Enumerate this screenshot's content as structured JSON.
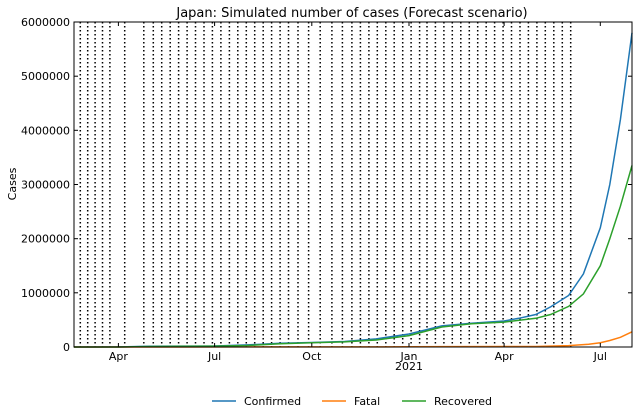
{
  "chart_data": {
    "type": "line",
    "title": "Japan: Simulated number of cases (Forecast scenario)",
    "ylabel": "Cases",
    "xlabel": "",
    "x_range": [
      "2020-02-19",
      "2021-07-31"
    ],
    "ylim": [
      0,
      6000000
    ],
    "yticks": [
      0,
      1000000,
      2000000,
      3000000,
      4000000,
      5000000,
      6000000
    ],
    "ytick_labels": [
      "0",
      "1000000",
      "2000000",
      "3000000",
      "4000000",
      "5000000",
      "6000000"
    ],
    "xticks": [
      {
        "date": "2020-04-01",
        "label": "Apr"
      },
      {
        "date": "2020-07-01",
        "label": "Jul"
      },
      {
        "date": "2020-10-01",
        "label": "Oct"
      },
      {
        "date": "2021-01-01",
        "label": "Jan"
      },
      {
        "date": "2021-04-01",
        "label": "Apr"
      },
      {
        "date": "2021-07-01",
        "label": "Jul"
      }
    ],
    "year_label": {
      "date": "2021-01-01",
      "label": "2021"
    },
    "legend_position": "bottom-center",
    "change_dates": [
      "2020-02-25",
      "2020-03-03",
      "2020-03-10",
      "2020-03-17",
      "2020-03-24",
      "2020-04-07",
      "2020-04-25",
      "2020-05-04",
      "2020-05-12",
      "2020-05-20",
      "2020-05-28",
      "2020-06-05",
      "2020-06-13",
      "2020-06-21",
      "2020-06-29",
      "2020-07-07",
      "2020-07-15",
      "2020-07-23",
      "2020-07-31",
      "2020-08-08",
      "2020-08-16",
      "2020-08-24",
      "2020-09-01",
      "2020-09-09",
      "2020-09-18",
      "2020-09-28",
      "2020-10-09",
      "2020-10-20",
      "2020-10-30",
      "2020-11-08",
      "2020-11-16",
      "2020-11-24",
      "2020-12-02",
      "2020-12-10",
      "2020-12-18",
      "2020-12-26",
      "2021-01-03",
      "2021-01-11",
      "2021-01-18",
      "2021-01-26",
      "2021-02-03",
      "2021-02-11",
      "2021-02-19",
      "2021-02-27",
      "2021-03-07",
      "2021-03-15",
      "2021-03-23",
      "2021-03-31",
      "2021-04-08",
      "2021-04-16",
      "2021-04-24",
      "2021-05-02",
      "2021-05-10",
      "2021-05-18",
      "2021-05-26",
      "2021-06-03"
    ],
    "series": [
      {
        "name": "Confirmed",
        "color": "#1f77b4",
        "points": [
          [
            "2020-02-19",
            100
          ],
          [
            "2020-04-01",
            2000
          ],
          [
            "2020-05-01",
            14000
          ],
          [
            "2020-06-01",
            17000
          ],
          [
            "2020-07-01",
            19000
          ],
          [
            "2020-08-01",
            38000
          ],
          [
            "2020-09-01",
            69000
          ],
          [
            "2020-10-01",
            83000
          ],
          [
            "2020-11-01",
            102000
          ],
          [
            "2020-12-01",
            150000
          ],
          [
            "2021-01-01",
            240000
          ],
          [
            "2021-02-01",
            390000
          ],
          [
            "2021-03-01",
            440000
          ],
          [
            "2021-04-01",
            480000
          ],
          [
            "2021-04-15",
            530000
          ],
          [
            "2021-05-01",
            600000
          ],
          [
            "2021-05-15",
            740000
          ],
          [
            "2021-06-01",
            950000
          ],
          [
            "2021-06-15",
            1350000
          ],
          [
            "2021-07-01",
            2200000
          ],
          [
            "2021-07-10",
            3000000
          ],
          [
            "2021-07-20",
            4200000
          ],
          [
            "2021-07-31",
            5800000
          ]
        ]
      },
      {
        "name": "Fatal",
        "color": "#ff7f0e",
        "points": [
          [
            "2020-02-19",
            0
          ],
          [
            "2020-06-01",
            900
          ],
          [
            "2020-09-01",
            1300
          ],
          [
            "2020-12-01",
            2500
          ],
          [
            "2021-02-01",
            6500
          ],
          [
            "2021-04-01",
            9000
          ],
          [
            "2021-05-01",
            10000
          ],
          [
            "2021-06-01",
            25000
          ],
          [
            "2021-06-20",
            50000
          ],
          [
            "2021-07-01",
            80000
          ],
          [
            "2021-07-10",
            120000
          ],
          [
            "2021-07-20",
            180000
          ],
          [
            "2021-07-31",
            280000
          ]
        ]
      },
      {
        "name": "Recovered",
        "color": "#2ca02c",
        "points": [
          [
            "2020-02-19",
            0
          ],
          [
            "2020-04-01",
            500
          ],
          [
            "2020-05-01",
            9000
          ],
          [
            "2020-06-01",
            15000
          ],
          [
            "2020-07-01",
            17500
          ],
          [
            "2020-08-01",
            28000
          ],
          [
            "2020-09-01",
            60000
          ],
          [
            "2020-10-01",
            77000
          ],
          [
            "2020-11-01",
            95000
          ],
          [
            "2020-12-01",
            130000
          ],
          [
            "2021-01-01",
            210000
          ],
          [
            "2021-02-01",
            370000
          ],
          [
            "2021-03-01",
            430000
          ],
          [
            "2021-04-01",
            460000
          ],
          [
            "2021-05-01",
            530000
          ],
          [
            "2021-05-15",
            600000
          ],
          [
            "2021-06-01",
            750000
          ],
          [
            "2021-06-15",
            980000
          ],
          [
            "2021-07-01",
            1500000
          ],
          [
            "2021-07-10",
            2000000
          ],
          [
            "2021-07-20",
            2600000
          ],
          [
            "2021-07-31",
            3350000
          ]
        ]
      }
    ]
  }
}
